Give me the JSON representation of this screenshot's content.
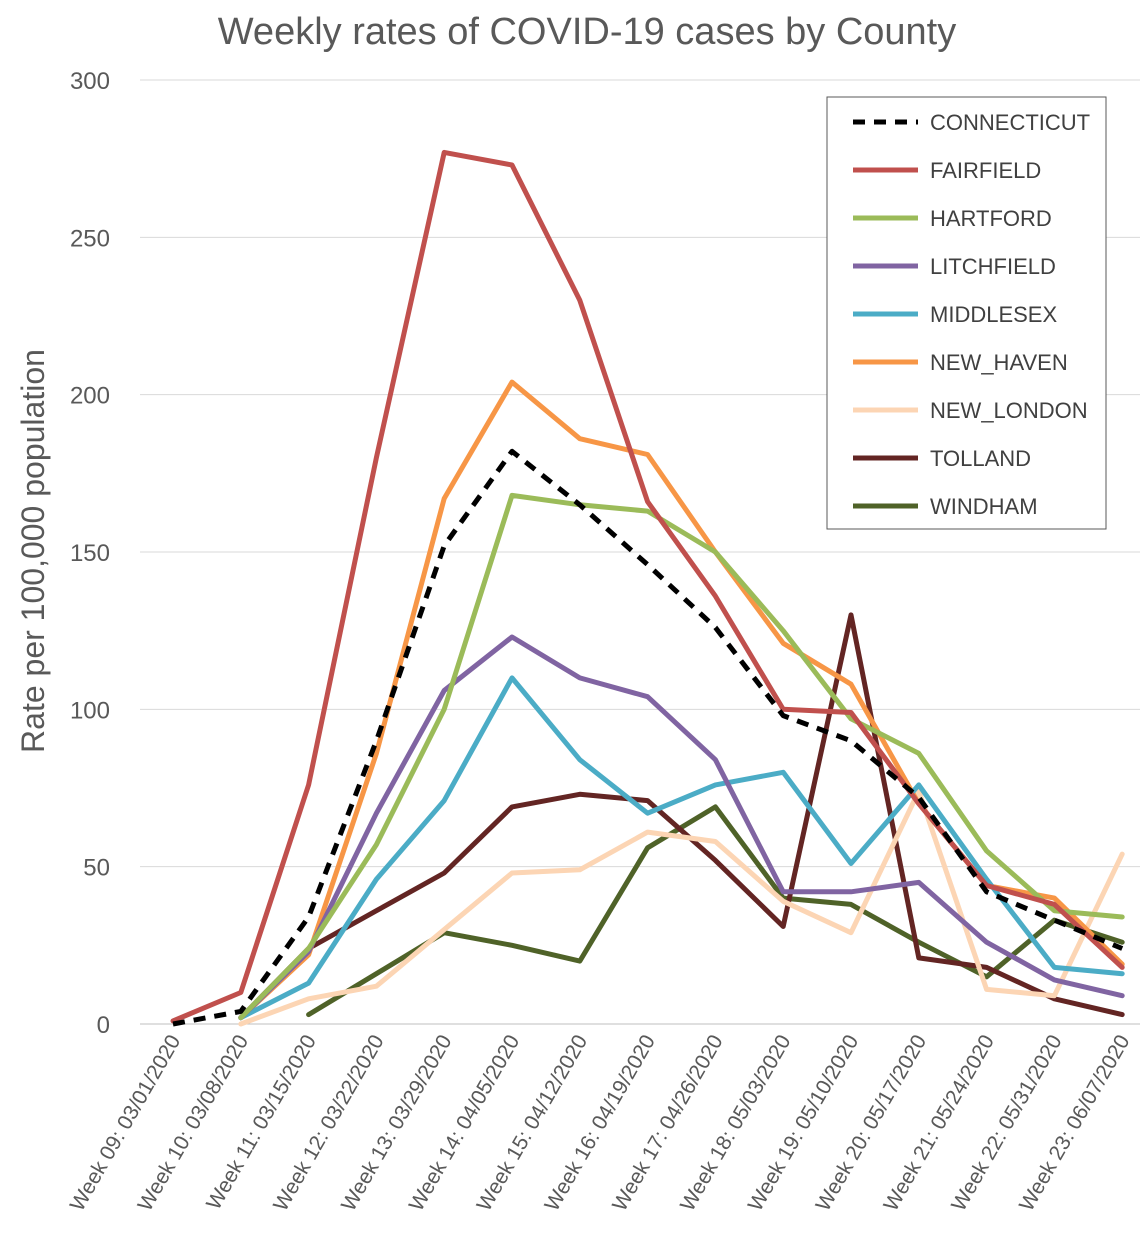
{
  "chart_data": {
    "type": "line",
    "title": "Weekly rates of COVID-19 cases by County",
    "xlabel": "",
    "ylabel": "Rate per 100,000 population",
    "ylim": [
      0,
      300
    ],
    "yticks": [
      0,
      50,
      100,
      150,
      200,
      250,
      300
    ],
    "grid": true,
    "legend_position": "top-right",
    "categories": [
      "Week 09: 03/01/2020",
      "Week 10: 03/08/2020",
      "Week 11: 03/15/2020",
      "Week 12: 03/22/2020",
      "Week 13: 03/29/2020",
      "Week 14: 04/05/2020",
      "Week 15: 04/12/2020",
      "Week 16: 04/19/2020",
      "Week 17: 04/26/2020",
      "Week 18: 05/03/2020",
      "Week 19: 05/10/2020",
      "Week 20: 05/17/2020",
      "Week 21: 05/24/2020",
      "Week 22: 05/31/2020",
      "Week 23: 06/07/2020"
    ],
    "series": [
      {
        "name": "CONNECTICUT",
        "color": "#000000",
        "dashed": true,
        "values": [
          0,
          4,
          34,
          90,
          152,
          182,
          165,
          146,
          126,
          98,
          90,
          72,
          42,
          33,
          24
        ]
      },
      {
        "name": "FAIRFIELD",
        "color": "#c0504d",
        "dashed": false,
        "values": [
          1,
          10,
          76,
          180,
          277,
          273,
          230,
          166,
          136,
          100,
          99,
          70,
          44,
          38,
          18
        ]
      },
      {
        "name": "HARTFORD",
        "color": "#9bbb59",
        "dashed": false,
        "values": [
          null,
          2,
          24,
          57,
          100,
          168,
          165,
          163,
          150,
          125,
          97,
          86,
          55,
          36,
          34
        ]
      },
      {
        "name": "LITCHFIELD",
        "color": "#8064a2",
        "dashed": false,
        "values": [
          null,
          2,
          23,
          67,
          106,
          123,
          110,
          104,
          84,
          42,
          42,
          45,
          26,
          14,
          9
        ]
      },
      {
        "name": "MIDDLESEX",
        "color": "#4bacc6",
        "dashed": false,
        "values": [
          null,
          2,
          13,
          46,
          71,
          110,
          84,
          67,
          76,
          80,
          51,
          76,
          46,
          18,
          16
        ]
      },
      {
        "name": "NEW_HAVEN",
        "color": "#f79646",
        "dashed": false,
        "values": [
          null,
          2,
          22,
          86,
          167,
          204,
          186,
          181,
          150,
          121,
          108,
          70,
          44,
          40,
          19
        ]
      },
      {
        "name": "NEW_LONDON",
        "color": "#fcd5b4",
        "dashed": false,
        "values": [
          null,
          0,
          8,
          12,
          30,
          48,
          49,
          61,
          58,
          39,
          29,
          74,
          11,
          9,
          54
        ]
      },
      {
        "name": "TOLLAND",
        "color": "#632523",
        "dashed": false,
        "values": [
          null,
          2,
          24,
          36,
          48,
          69,
          73,
          71,
          52,
          31,
          130,
          21,
          18,
          8,
          3
        ]
      },
      {
        "name": "WINDHAM",
        "color": "#4f6228",
        "dashed": false,
        "values": [
          null,
          null,
          3,
          16,
          29,
          25,
          20,
          56,
          69,
          40,
          38,
          26,
          15,
          33,
          26
        ]
      }
    ]
  }
}
